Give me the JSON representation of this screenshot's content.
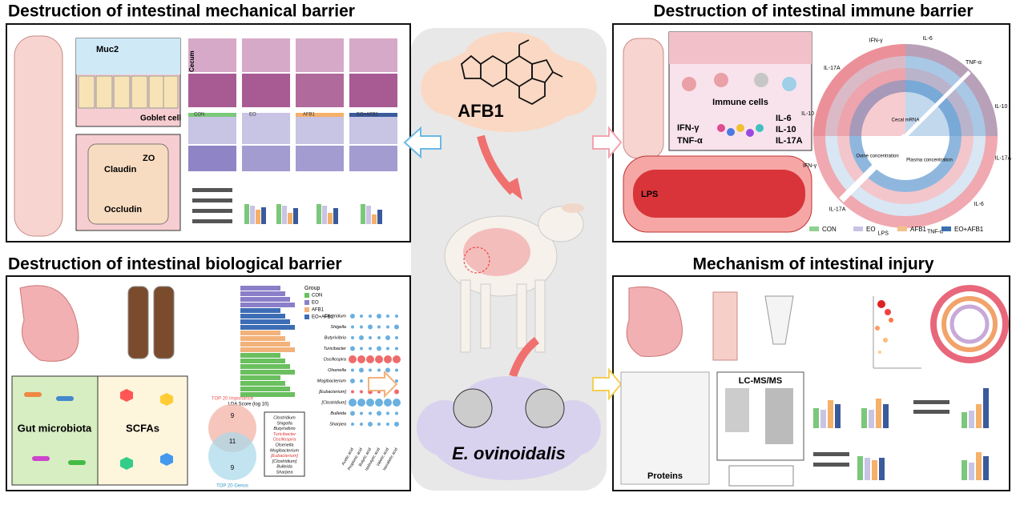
{
  "panels": {
    "mechanical": {
      "title": "Destruction of intestinal mechanical barrier",
      "labels": [
        "Muc2",
        "Goblet cell",
        "ZO",
        "Claudin",
        "Occludin",
        "Cecum"
      ],
      "groups": [
        "CON",
        "EO",
        "AFB1",
        "EO+AFB1"
      ]
    },
    "immune": {
      "title": "Destruction of intestinal immune barrier",
      "labels": [
        "Immune cells",
        "IFN-γ",
        "TNF-α",
        "IL-6",
        "IL-10",
        "IL-17A",
        "LPS"
      ],
      "legend": [
        {
          "name": "CON",
          "color": "#8fd18f"
        },
        {
          "name": "EO",
          "color": "#c9c3e6"
        },
        {
          "name": "AFB1",
          "color": "#f5c08a"
        },
        {
          "name": "EO+AFB1",
          "color": "#3a6fb0"
        }
      ],
      "ring_labels": [
        "IFN-γ",
        "IL-6",
        "TNF-α",
        "IL-10",
        "IL-17A",
        "IL-6",
        "TNF-α",
        "LPS",
        "IL-17A",
        "IFN-γ",
        "IL-10",
        "IL-17A",
        "Cecal mRNA",
        "Ovine concentration",
        "Plasma concentration"
      ]
    },
    "biological": {
      "title": "Destruction of intestinal biological barrier",
      "labels": [
        "Gut microbiota",
        "SCFAs"
      ],
      "lda_axis": "LDA Score (log 10)",
      "group_title": "Group",
      "legend": [
        {
          "name": "CON",
          "color": "#6abf5e"
        },
        {
          "name": "EO",
          "color": "#8b7fc9"
        },
        {
          "name": "AFB1",
          "color": "#f2b27a"
        },
        {
          "name": "EO+AFB1",
          "color": "#3d6db5"
        }
      ],
      "genus": [
        "Clostridium",
        "Shigella",
        "Butyrivibrio",
        "Turicibacter",
        "Oscillospira",
        "Olsenella",
        "Mogibacterium",
        "[Eubacterium]",
        "[Clostridium]",
        "Bulleida",
        "Sharpea"
      ],
      "acids": [
        "Acetic acid",
        "Propionic acid",
        "Butyric acid",
        "Isobutyric acid",
        "Valeric acid",
        "Isovaleric acid"
      ],
      "venn": {
        "top": "TOP 20 Importance",
        "bottom": "TOP 20 Genus",
        "left": 9,
        "middle": 11,
        "right": 9
      }
    },
    "center": {
      "toxin": "AFB1",
      "species": "E. ovinoidalis"
    },
    "mechanism": {
      "title": "Mechanism of intestinal injury",
      "labels": [
        "Proteins",
        "LC-MS/MS"
      ]
    }
  }
}
